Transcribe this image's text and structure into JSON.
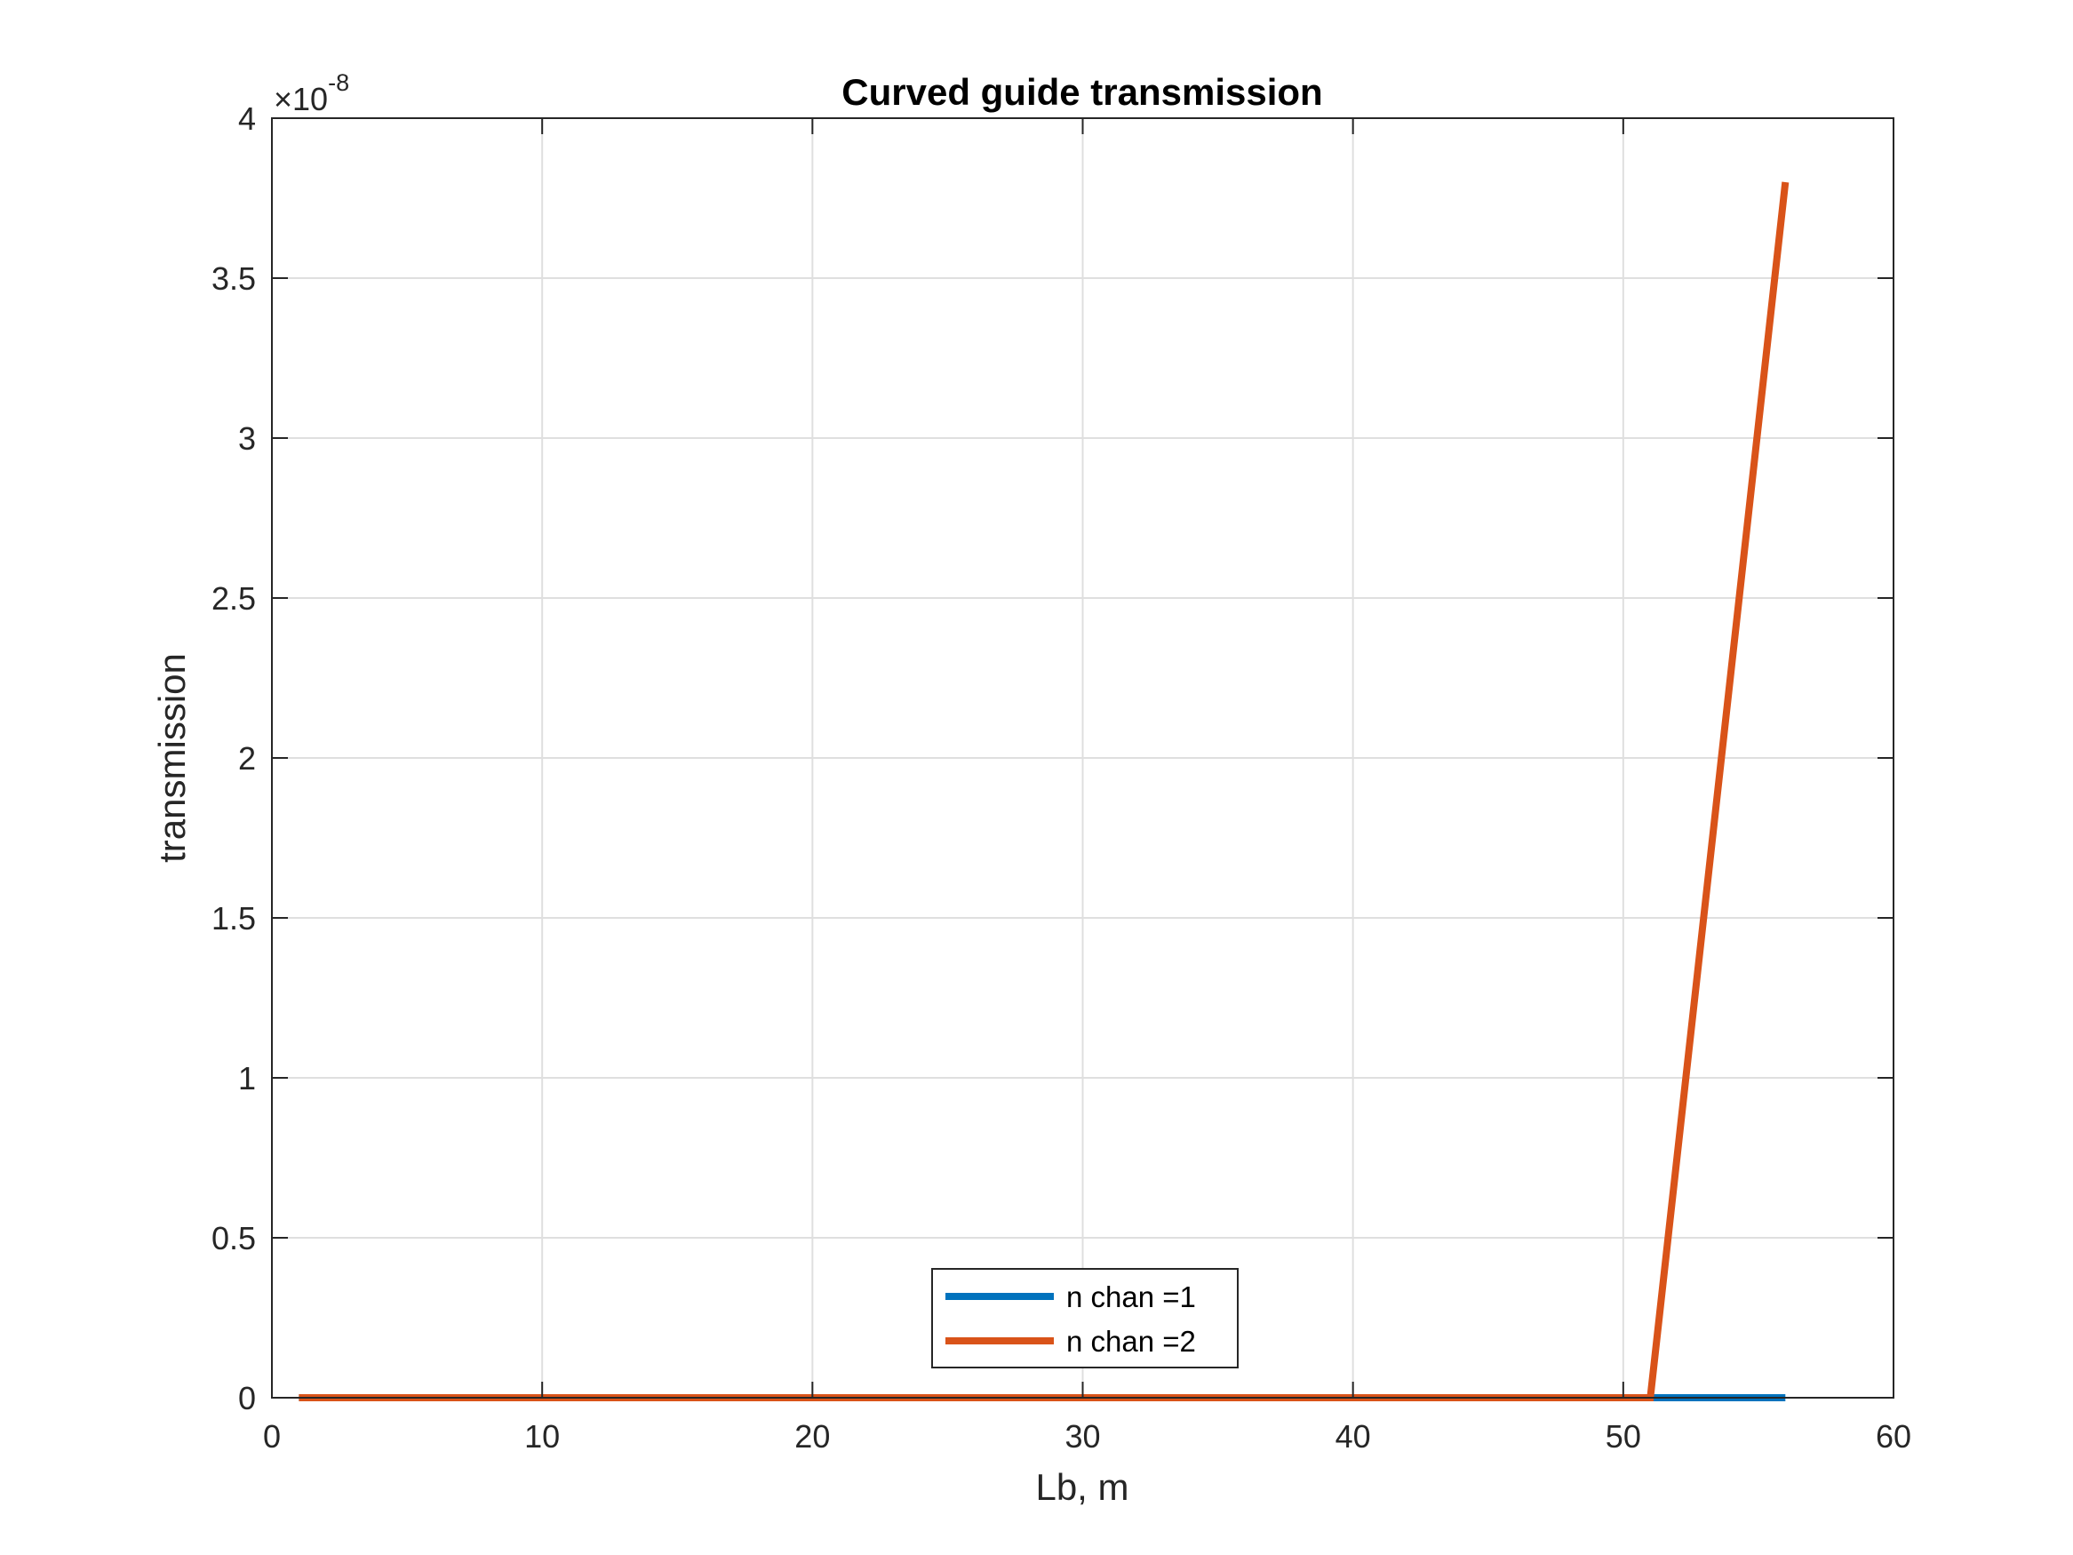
{
  "chart_data": {
    "type": "line",
    "title": "Curved guide transmission",
    "xlabel": "Lb, m",
    "ylabel": "transmission",
    "xlim": [
      0,
      60
    ],
    "ylim": [
      0,
      4e-08
    ],
    "xticks": [
      "0",
      "10",
      "20",
      "30",
      "40",
      "50",
      "60"
    ],
    "yticks": [
      "0",
      "0.5",
      "1",
      "1.5",
      "2",
      "2.5",
      "3",
      "3.5",
      "4"
    ],
    "y_exponent_label": "×10",
    "y_exponent": "-8",
    "grid": true,
    "legend_position": "bottom-center",
    "series": [
      {
        "name": "n chan =1",
        "color": "#0072BD",
        "x": [
          1,
          51,
          56
        ],
        "y": [
          0,
          0,
          0
        ]
      },
      {
        "name": "n chan =2",
        "color": "#D95319",
        "x": [
          1,
          51,
          56
        ],
        "y": [
          0,
          0,
          3.8e-08
        ]
      }
    ]
  }
}
